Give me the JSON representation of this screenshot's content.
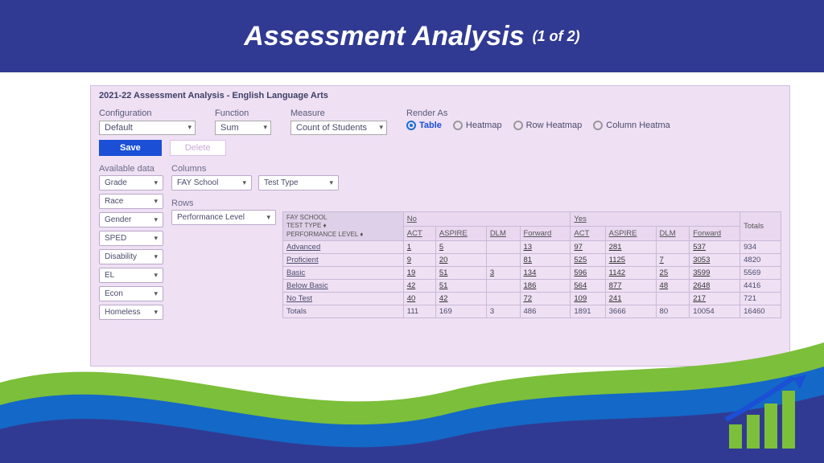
{
  "header": {
    "title": "Assessment Analysis",
    "subtitle": "(1 of 2)"
  },
  "panel": {
    "title": "2021-22 Assessment Analysis - English Language Arts"
  },
  "config": {
    "configuration_label": "Configuration",
    "configuration_value": "Default",
    "function_label": "Function",
    "function_value": "Sum",
    "measure_label": "Measure",
    "measure_value": "Count of Students",
    "render_label": "Render As",
    "render_options": [
      "Table",
      "Heatmap",
      "Row Heatmap",
      "Column Heatma"
    ],
    "render_selected": 0,
    "save_label": "Save",
    "delete_label": "Delete"
  },
  "available": {
    "label": "Available data",
    "items": [
      "Grade",
      "Race",
      "Gender",
      "SPED",
      "Disability",
      "EL",
      "Econ",
      "Homeless"
    ]
  },
  "columns": {
    "label": "Columns",
    "items": [
      "FAY School",
      "Test Type"
    ]
  },
  "rows": {
    "label": "Rows",
    "items": [
      "Performance Level"
    ]
  },
  "table": {
    "corner_lines": [
      "FAY SCHOOL",
      "TEST TYPE ♦"
    ],
    "row_header": "PERFORMANCE LEVEL ♦",
    "groups": [
      "No",
      "Yes"
    ],
    "subcols": [
      "ACT",
      "ASPIRE",
      "DLM",
      "Forward"
    ],
    "totals_label": "Totals",
    "perf_rows": [
      {
        "label": "Advanced",
        "no": [
          "1",
          "5",
          "",
          "13"
        ],
        "yes": [
          "97",
          "281",
          "",
          "537"
        ],
        "total": "934"
      },
      {
        "label": "Proficient",
        "no": [
          "9",
          "20",
          "",
          "81"
        ],
        "yes": [
          "525",
          "1125",
          "7",
          "3053"
        ],
        "total": "4820"
      },
      {
        "label": "Basic",
        "no": [
          "19",
          "51",
          "3",
          "134"
        ],
        "yes": [
          "596",
          "1142",
          "25",
          "3599"
        ],
        "total": "5569"
      },
      {
        "label": "Below Basic",
        "no": [
          "42",
          "51",
          "",
          "186"
        ],
        "yes": [
          "564",
          "877",
          "48",
          "2648"
        ],
        "total": "4416"
      },
      {
        "label": "No Test",
        "no": [
          "40",
          "42",
          "",
          "72"
        ],
        "yes": [
          "109",
          "241",
          "",
          "217"
        ],
        "total": "721"
      }
    ],
    "totals_row": {
      "label": "Totals",
      "no": [
        "111",
        "169",
        "3",
        "486"
      ],
      "yes": [
        "1891",
        "3666",
        "80",
        "10054"
      ],
      "total": "16460"
    }
  },
  "colors": {
    "header_bg": "#313a92",
    "panel_bg": "#efe0f4",
    "accent": "#1a4fd6",
    "wave_green": "#7cbf3a",
    "wave_blue": "#1468c7",
    "wave_navy": "#313a92"
  }
}
